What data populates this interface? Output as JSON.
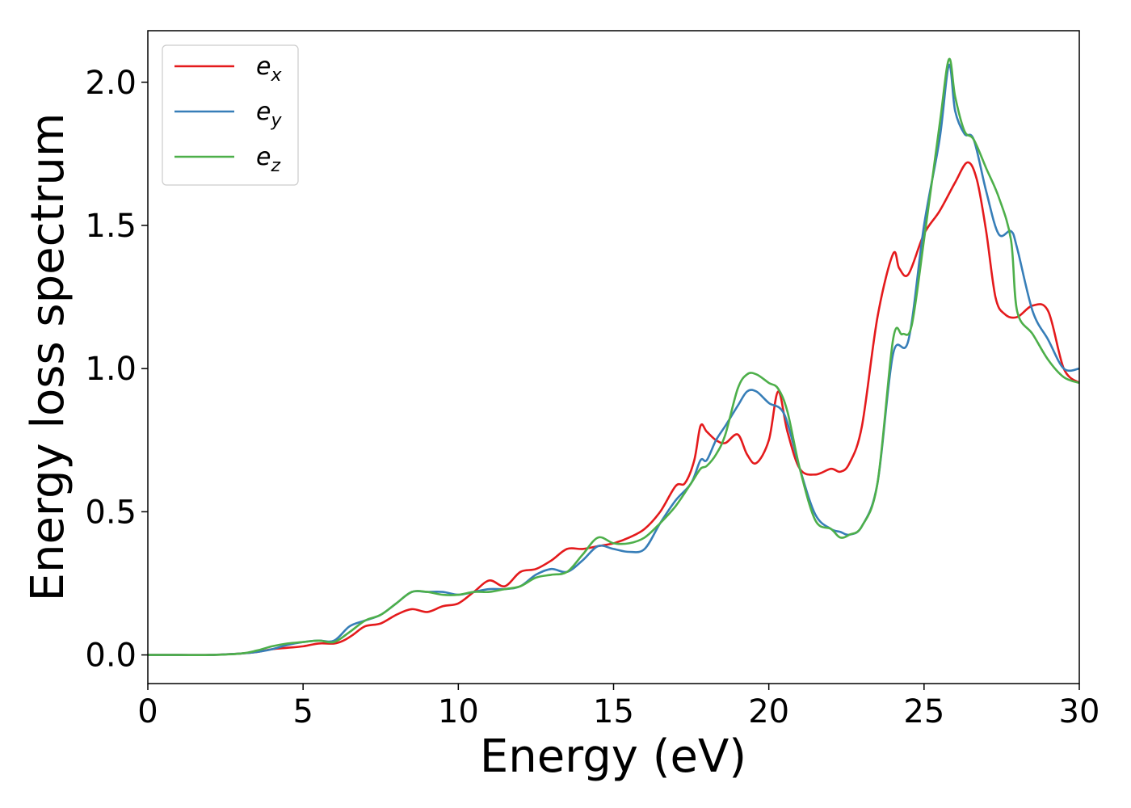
{
  "chart_data": {
    "type": "line",
    "title": "",
    "xlabel": "Energy (eV)",
    "ylabel": "Energy loss spectrum",
    "xlim": [
      0,
      30
    ],
    "ylim": [
      -0.1,
      2.18
    ],
    "xticks": [
      0,
      5,
      10,
      15,
      20,
      25,
      30
    ],
    "xtick_labels": [
      "0",
      "5",
      "10",
      "15",
      "20",
      "25",
      "30"
    ],
    "yticks": [
      0.0,
      0.5,
      1.0,
      1.5,
      2.0
    ],
    "ytick_labels": [
      "0.0",
      "0.5",
      "1.0",
      "1.5",
      "2.0"
    ],
    "grid": false,
    "legend_position": "top-left",
    "series": [
      {
        "name": "e_x",
        "label_main": "e",
        "label_sub": "x",
        "color": "#e41a1c",
        "x": [
          0,
          1,
          2,
          3,
          3.5,
          4,
          4.5,
          5,
          5.5,
          6,
          6.3,
          6.6,
          7,
          7.5,
          8,
          8.5,
          9,
          9.5,
          10,
          10.5,
          11,
          11.5,
          12,
          12.5,
          13,
          13.5,
          14,
          14.5,
          15,
          15.5,
          16,
          16.5,
          17,
          17.3,
          17.6,
          17.8,
          18,
          18.3,
          18.6,
          19,
          19.3,
          19.6,
          20,
          20.3,
          20.6,
          21,
          21.5,
          22,
          22.3,
          22.6,
          23,
          23.5,
          24,
          24.2,
          24.5,
          25,
          25.5,
          26,
          26.4,
          26.7,
          27,
          27.3,
          27.6,
          28,
          28.5,
          29,
          29.5,
          30
        ],
        "y": [
          0,
          0,
          0,
          0.005,
          0.01,
          0.02,
          0.025,
          0.03,
          0.04,
          0.04,
          0.05,
          0.07,
          0.1,
          0.11,
          0.14,
          0.16,
          0.15,
          0.17,
          0.18,
          0.22,
          0.26,
          0.24,
          0.29,
          0.3,
          0.33,
          0.37,
          0.37,
          0.38,
          0.39,
          0.41,
          0.44,
          0.5,
          0.59,
          0.6,
          0.68,
          0.8,
          0.78,
          0.75,
          0.74,
          0.77,
          0.7,
          0.67,
          0.75,
          0.92,
          0.78,
          0.65,
          0.63,
          0.65,
          0.64,
          0.67,
          0.8,
          1.18,
          1.4,
          1.35,
          1.33,
          1.47,
          1.55,
          1.65,
          1.72,
          1.66,
          1.48,
          1.25,
          1.19,
          1.18,
          1.22,
          1.2,
          1.0,
          0.95
        ]
      },
      {
        "name": "e_y",
        "label_main": "e",
        "label_sub": "y",
        "color": "#377eb8",
        "x": [
          0,
          1,
          2,
          3,
          3.5,
          4,
          4.5,
          5,
          5.5,
          6,
          6.5,
          7,
          7.5,
          8,
          8.5,
          9,
          9.5,
          10,
          10.5,
          11,
          11.5,
          12,
          12.5,
          13,
          13.5,
          14,
          14.5,
          15,
          15.5,
          16,
          16.5,
          17,
          17.5,
          17.8,
          18,
          18.3,
          18.6,
          19,
          19.3,
          19.6,
          20,
          20.5,
          21,
          21.5,
          22,
          22.3,
          22.6,
          23,
          23.5,
          24,
          24.5,
          25,
          25.5,
          25.8,
          26,
          26.3,
          26.6,
          27,
          27.4,
          27.8,
          28,
          28.5,
          29,
          29.5,
          30
        ],
        "y": [
          0,
          0,
          0,
          0.005,
          0.01,
          0.02,
          0.035,
          0.045,
          0.05,
          0.05,
          0.1,
          0.12,
          0.14,
          0.18,
          0.22,
          0.22,
          0.22,
          0.21,
          0.22,
          0.23,
          0.23,
          0.24,
          0.28,
          0.3,
          0.29,
          0.33,
          0.38,
          0.37,
          0.36,
          0.37,
          0.46,
          0.54,
          0.6,
          0.68,
          0.68,
          0.75,
          0.8,
          0.87,
          0.92,
          0.92,
          0.88,
          0.84,
          0.65,
          0.49,
          0.44,
          0.43,
          0.42,
          0.45,
          0.6,
          1.05,
          1.1,
          1.5,
          1.8,
          2.06,
          1.9,
          1.82,
          1.8,
          1.62,
          1.47,
          1.48,
          1.42,
          1.2,
          1.1,
          1.0,
          1.0
        ]
      },
      {
        "name": "e_z",
        "label_main": "e",
        "label_sub": "z",
        "color": "#4daf4a",
        "x": [
          0,
          1,
          2,
          3,
          3.5,
          4,
          4.5,
          5,
          5.5,
          6,
          6.5,
          7,
          7.5,
          8,
          8.5,
          9,
          9.5,
          10,
          10.5,
          11,
          11.5,
          12,
          12.5,
          13,
          13.5,
          14,
          14.5,
          15,
          15.5,
          16,
          16.5,
          17,
          17.5,
          17.8,
          18,
          18.3,
          18.6,
          19,
          19.3,
          19.6,
          20,
          20.3,
          20.6,
          21,
          21.5,
          22,
          22.3,
          22.6,
          23,
          23.5,
          24,
          24.3,
          24.6,
          25,
          25.5,
          25.8,
          26,
          26.3,
          26.6,
          27,
          27.4,
          27.8,
          28,
          28.5,
          29,
          29.5,
          30
        ],
        "y": [
          0,
          0,
          0,
          0.005,
          0.015,
          0.03,
          0.04,
          0.045,
          0.05,
          0.045,
          0.08,
          0.12,
          0.14,
          0.18,
          0.22,
          0.22,
          0.21,
          0.21,
          0.22,
          0.22,
          0.23,
          0.24,
          0.27,
          0.28,
          0.29,
          0.35,
          0.41,
          0.39,
          0.39,
          0.41,
          0.46,
          0.52,
          0.6,
          0.65,
          0.66,
          0.7,
          0.77,
          0.93,
          0.98,
          0.98,
          0.95,
          0.93,
          0.85,
          0.65,
          0.47,
          0.44,
          0.41,
          0.42,
          0.45,
          0.6,
          1.1,
          1.12,
          1.15,
          1.45,
          1.85,
          2.08,
          1.95,
          1.83,
          1.8,
          1.7,
          1.6,
          1.45,
          1.2,
          1.12,
          1.03,
          0.97,
          0.95
        ]
      }
    ]
  }
}
